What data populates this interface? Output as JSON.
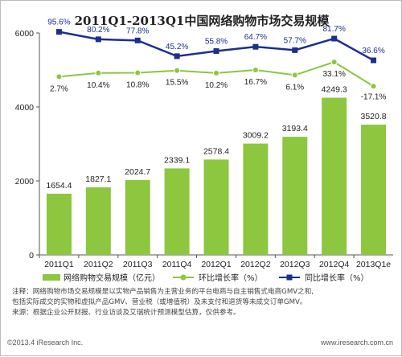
{
  "title": "2011Q1-2013Q1中国网络购物市场交易规模",
  "notes": [
    "注释：网络购物市场交易规模是以实物产品销售为主营业务的平台电商与自主销售式电商GMV之和,",
    "包括实际成交的实物和虚拟产品GMV、营业税（或增值税）及未支付和退货等未成交订单GMV。",
    "来源：根据企业公开财报、行业访谈及艾瑞统计预测模型估算，仅供参考。"
  ],
  "footer": {
    "copyright": "©2013.4 iResearch Inc.",
    "website": "www.iresearch.com.cn"
  },
  "chart_data": {
    "type": "bar",
    "title": "2011Q1-2013Q1中国网络购物市场交易规模",
    "categories": [
      "2011Q1",
      "2011Q2",
      "2011Q3",
      "2011Q4",
      "2012Q1",
      "2012Q2",
      "2012Q3",
      "2012Q4",
      "2013Q1e"
    ],
    "y_ticks": [
      "0",
      "2000",
      "4000",
      "6000"
    ],
    "ylim": [
      0,
      6000
    ],
    "legend_position": "bottom",
    "series": [
      {
        "name": "网络购物交易规模（亿元）",
        "type": "bar",
        "color": "#8dc63f",
        "values": [
          1654.4,
          1827.1,
          2024.7,
          2339.1,
          2578.4,
          3009.2,
          3193.4,
          4249.3,
          3520.8
        ],
        "labels": [
          "1654.4",
          "1827.1",
          "2024.7",
          "2339.1",
          "2578.4",
          "3009.2",
          "3193.4",
          "4249.3",
          "3520.8"
        ]
      },
      {
        "name": "环比增长率（%）",
        "type": "line",
        "color": "#8dc63f",
        "values": [
          2.7,
          10.4,
          10.8,
          15.5,
          10.2,
          16.7,
          6.1,
          33.1,
          -17.1
        ],
        "labels": [
          "2.7%",
          "10.4%",
          "10.8%",
          "15.5%",
          "10.2%",
          "16.7%",
          "6.1%",
          "33.1%",
          "-17.1%"
        ]
      },
      {
        "name": "同比增长率（%）",
        "type": "line",
        "color": "#1b2f8f",
        "values": [
          95.6,
          80.2,
          77.8,
          45.2,
          55.8,
          64.7,
          57.7,
          81.7,
          36.6
        ],
        "labels": [
          "95.6%",
          "80.2%",
          "77.8%",
          "45.2%",
          "55.8%",
          "64.7%",
          "57.7%",
          "81.7%",
          "36.6%"
        ]
      }
    ]
  }
}
